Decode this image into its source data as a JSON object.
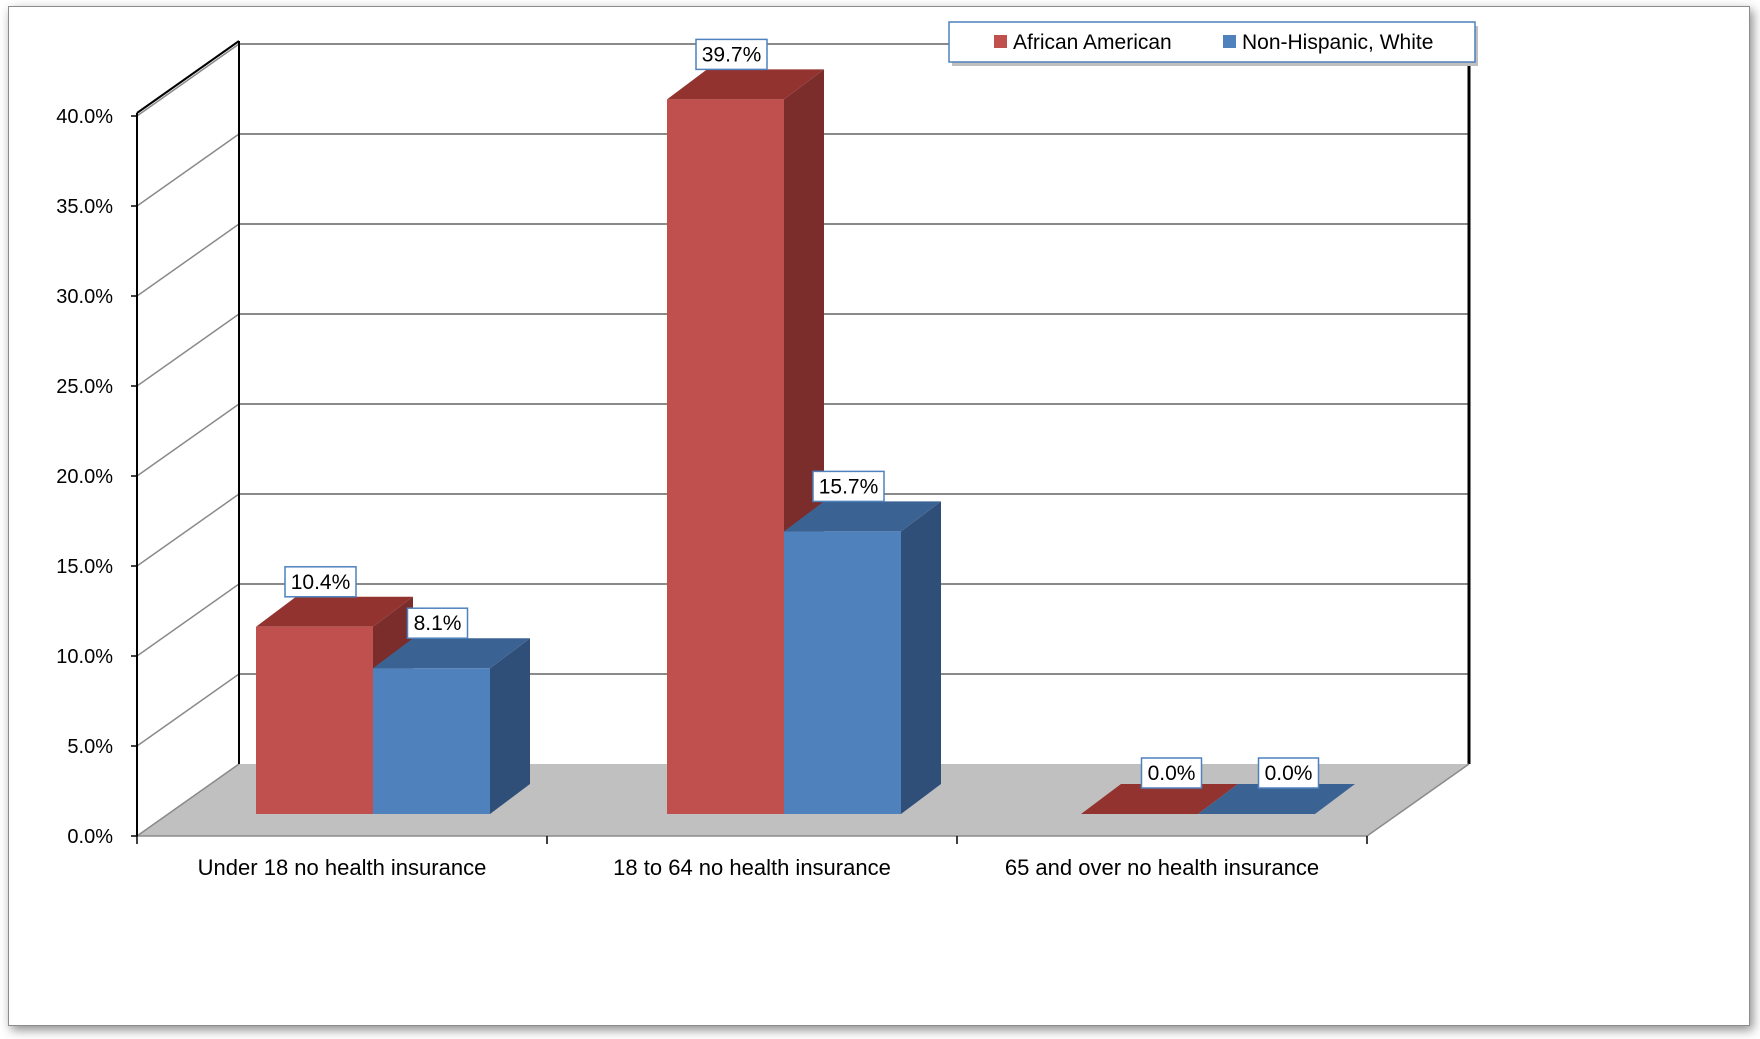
{
  "chart_data": {
    "type": "bar",
    "title": "",
    "xlabel": "",
    "ylabel": "",
    "categories": [
      "Under 18  no health insurance",
      "18 to 64 no health insurance",
      "65 and over no health insurance"
    ],
    "series": [
      {
        "name": "African American",
        "values": [
          10.4,
          39.7,
          0.0
        ],
        "labels": [
          "10.4%",
          "39.7%",
          "0.0%"
        ],
        "color": "#C0504D",
        "side_color": "#7B2D2B",
        "top_color": "#93332F"
      },
      {
        "name": "Non-Hispanic, White",
        "values": [
          8.1,
          15.7,
          0.0
        ],
        "labels": [
          "8.1%",
          "15.7%",
          "0.0%"
        ],
        "color": "#4F81BD",
        "side_color": "#2F4F79",
        "top_color": "#3A6394"
      }
    ],
    "ylim": [
      0,
      40
    ],
    "yticks": [
      0,
      5,
      10,
      15,
      20,
      25,
      30,
      35,
      40
    ],
    "ytick_labels": [
      "0.0%",
      "5.0%",
      "10.0%",
      "15.0%",
      "20.0%",
      "25.0%",
      "30.0%",
      "35.0%",
      "40.0%"
    ],
    "grid": true,
    "legend_position": "top-right",
    "style": "3d-clustered-column"
  }
}
